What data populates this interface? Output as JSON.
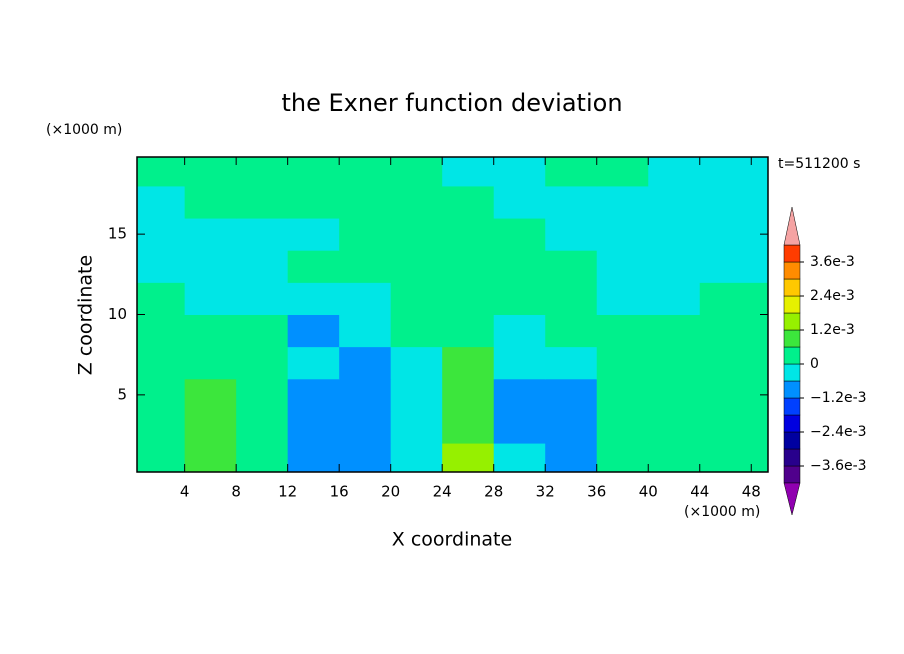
{
  "chart_data": {
    "type": "contour",
    "title": "the Exner function deviation",
    "x_label": "X coordinate",
    "y_label": "Z coordinate",
    "x_unit": "(×1000 m)",
    "y_unit": "(×1000 m)",
    "time_label": "t=511200 s",
    "xlim": [
      0.3,
      49.3
    ],
    "ylim": [
      0.2,
      19.8
    ],
    "xticks": [
      4,
      8,
      12,
      16,
      20,
      24,
      28,
      32,
      36,
      40,
      44,
      48
    ],
    "yticks": [
      5,
      10,
      15
    ],
    "x": [
      2,
      6,
      10,
      14,
      18,
      22,
      26,
      30,
      34,
      38,
      42,
      46
    ],
    "y": [
      1,
      3,
      5,
      7,
      9,
      11,
      13,
      15,
      17,
      19
    ],
    "z": [
      [
        0.0003,
        0.0009,
        0.0003,
        -0.0009,
        -0.0009,
        -0.0003,
        0.0015,
        -0.0003,
        -0.0009,
        0.0003,
        0.0003,
        0.0003
      ],
      [
        0.0003,
        0.0009,
        0.0003,
        -0.0009,
        -0.0009,
        -0.0003,
        0.0009,
        -0.0009,
        -0.0009,
        0.0003,
        0.0003,
        0.0003
      ],
      [
        0.0003,
        0.0009,
        0.0003,
        -0.0009,
        -0.0009,
        -0.0003,
        0.0009,
        -0.0009,
        -0.0009,
        0.0003,
        0.0003,
        0.0003
      ],
      [
        0.0003,
        0.0003,
        0.0003,
        -0.0003,
        -0.0009,
        -0.0003,
        0.0009,
        -0.0003,
        -0.0003,
        0.0003,
        0.0003,
        0.0003
      ],
      [
        0.0003,
        0.0003,
        0.0003,
        -0.0009,
        -0.0003,
        0.0003,
        0.0003,
        -0.0003,
        0.0003,
        0.0003,
        0.0003,
        0.0003
      ],
      [
        0.0003,
        -0.0003,
        -0.0003,
        -0.0003,
        -0.0003,
        0.0003,
        0.0003,
        0.0003,
        0.0003,
        -0.0003,
        -0.0003,
        0.0003
      ],
      [
        -0.0003,
        -0.0003,
        -0.0003,
        0.0003,
        0.0003,
        0.0003,
        0.0003,
        0.0003,
        0.0003,
        -0.0003,
        -0.0003,
        -0.0003
      ],
      [
        -0.0003,
        -0.0003,
        -0.0003,
        -0.0003,
        0.0003,
        0.0003,
        0.0003,
        0.0003,
        -0.0003,
        -0.0003,
        -0.0003,
        -0.0003
      ],
      [
        -0.0003,
        0.0003,
        0.0003,
        0.0003,
        0.0003,
        0.0003,
        0.0003,
        -0.0003,
        -0.0003,
        -0.0003,
        -0.0003,
        -0.0003
      ],
      [
        0.0003,
        0.0003,
        0.0003,
        0.0003,
        0.0003,
        0.0003,
        -0.0003,
        -0.0003,
        0.0003,
        0.0003,
        -0.0003,
        -0.0003
      ]
    ],
    "levels": [
      -0.0042,
      -0.0036,
      -0.003,
      -0.0024,
      -0.0018,
      -0.0012,
      -0.0006,
      0,
      0.0006,
      0.0012,
      0.0018,
      0.0024,
      0.003,
      0.0036,
      0.0042
    ],
    "colors": [
      "#50008c",
      "#28008c",
      "#0000a0",
      "#0000e0",
      "#0040ff",
      "#0090ff",
      "#00e6e6",
      "#00f08c",
      "#3ce63c",
      "#96f000",
      "#e6f000",
      "#ffc800",
      "#ff8c00",
      "#ff3c00"
    ],
    "under_color": "#9000b0",
    "over_color": "#f5a3a3",
    "colorbar_ticks": [
      {
        "value": 0.0036,
        "label": "3.6e-3"
      },
      {
        "value": 0.0024,
        "label": "2.4e-3"
      },
      {
        "value": 0.0012,
        "label": "1.2e-3"
      },
      0,
      {
        "value": -0.0012,
        "label": "−1.2e-3"
      },
      {
        "value": -0.0024,
        "label": "−2.4e-3"
      },
      {
        "value": -0.0036,
        "label": "−3.6e-3"
      }
    ]
  }
}
